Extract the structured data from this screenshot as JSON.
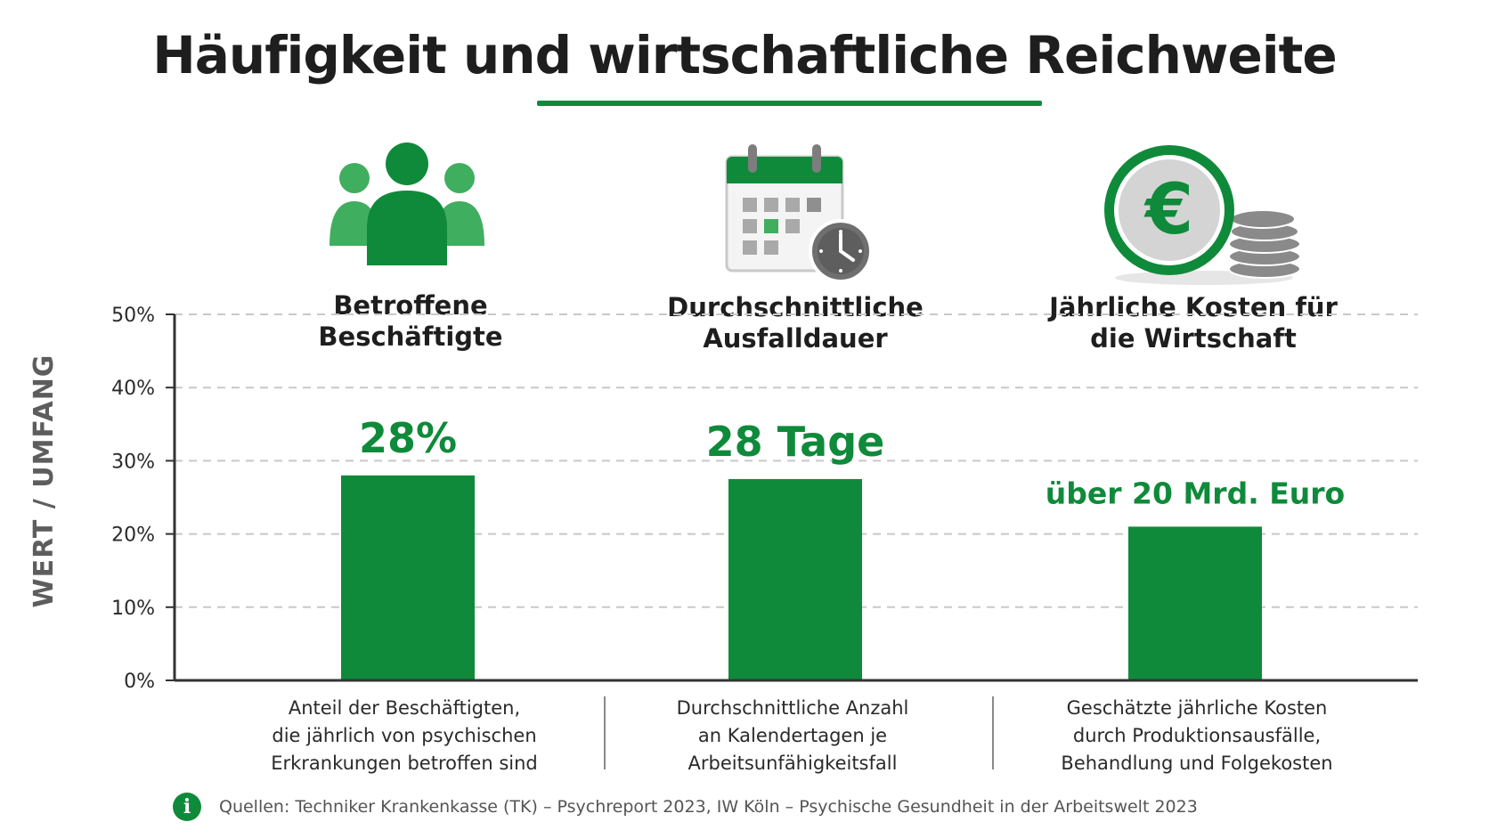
{
  "title": "Häufigkeit und wirtschaftliche Reichweite",
  "colors": {
    "accent": "#0f8a3a",
    "accent_light": "#3fae5f",
    "grid": "#c8c8c8",
    "axis": "#333333"
  },
  "icons": [
    "people-group-icon",
    "calendar-clock-icon",
    "euro-coin-icon",
    "info-icon"
  ],
  "categories": [
    {
      "title_line1": "Betroffene",
      "title_line2": "Beschäftigte",
      "desc_line1": "Anteil der Beschäftigten,",
      "desc_line2": "die jährlich von psychischen",
      "desc_line3": "Erkrankungen betroffen sind"
    },
    {
      "title_line1": "Durchschnittliche",
      "title_line2": "Ausfalldauer",
      "desc_line1": "Durchschnittliche Anzahl",
      "desc_line2": "an Kalendertagen je",
      "desc_line3": "Arbeitsunfähigkeitsfall"
    },
    {
      "title_line1": "Jährliche Kosten für",
      "title_line2": "die Wirtschaft",
      "desc_line1": "Geschätzte jährliche Kosten",
      "desc_line2": "durch Produktionsausfälle,",
      "desc_line3": "Behandlung und Folgekosten"
    }
  ],
  "source": "Quellen: Techniker Krankenkasse (TK) – Psychreport 2023, IW Köln – Psychische Gesundheit in der Arbeitswelt 2023",
  "chart_data": {
    "type": "bar",
    "title": "Häufigkeit und wirtschaftliche Reichweite",
    "xlabel": "",
    "ylabel": "WERT / UMFANG",
    "categories": [
      "Betroffene Beschäftigte",
      "Durchschnittliche Ausfalldauer",
      "Jährliche Kosten für die Wirtschaft"
    ],
    "values": [
      28,
      27.5,
      21
    ],
    "data_labels": [
      "28%",
      "28 Tage",
      "über 20 Mrd. Euro"
    ],
    "ylim": [
      0,
      50
    ],
    "yticks": [
      0,
      10,
      20,
      30,
      40,
      50
    ],
    "ytick_labels": [
      "0%",
      "10%",
      "20%",
      "30%",
      "40%",
      "50%"
    ],
    "grid": true
  }
}
